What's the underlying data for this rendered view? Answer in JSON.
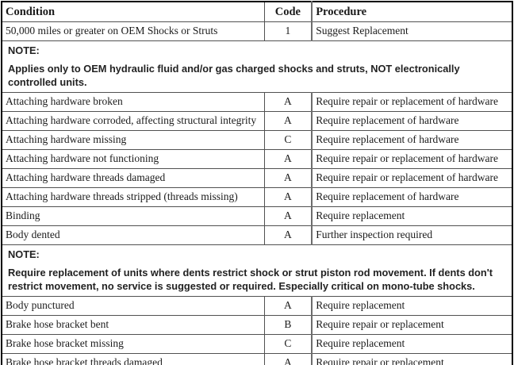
{
  "table": {
    "headers": {
      "condition": "Condition",
      "code": "Code",
      "procedure": "Procedure"
    },
    "rows": [
      {
        "type": "entry",
        "condition": "50,000 miles or greater on OEM Shocks or Struts",
        "code": "1",
        "procedure": "Suggest Replacement"
      },
      {
        "type": "note",
        "label": "NOTE:",
        "text": "Applies only to OEM hydraulic fluid and/or gas charged shocks and struts, NOT electronically controlled units."
      },
      {
        "type": "entry",
        "condition": "Attaching hardware broken",
        "code": "A",
        "procedure": "Require repair or replacement of hardware"
      },
      {
        "type": "entry",
        "condition": "Attaching hardware corroded, affecting structural integrity",
        "code": "A",
        "procedure": "Require replacement of hardware"
      },
      {
        "type": "entry",
        "condition": "Attaching hardware missing",
        "code": "C",
        "procedure": "Require replacement of hardware"
      },
      {
        "type": "entry",
        "condition": "Attaching hardware not functioning",
        "code": "A",
        "procedure": "Require repair or replacement of hardware"
      },
      {
        "type": "entry",
        "condition": "Attaching hardware threads damaged",
        "code": "A",
        "procedure": "Require repair or replacement of hardware"
      },
      {
        "type": "entry",
        "condition": "Attaching hardware threads stripped (threads missing)",
        "code": "A",
        "procedure": "Require replacement of hardware"
      },
      {
        "type": "entry",
        "condition": "Binding",
        "code": "A",
        "procedure": "Require replacement"
      },
      {
        "type": "entry",
        "condition": "Body dented",
        "code": "A",
        "procedure": "Further inspection required"
      },
      {
        "type": "note",
        "label": "NOTE:",
        "text": "Require replacement of units where dents restrict shock or strut piston rod movement. If dents don't restrict movement, no service is suggested or required. Especially critical on mono-tube shocks."
      },
      {
        "type": "entry",
        "condition": "Body punctured",
        "code": "A",
        "procedure": "Require replacement"
      },
      {
        "type": "entry",
        "condition": "Brake hose bracket bent",
        "code": "B",
        "procedure": "Require repair or replacement"
      },
      {
        "type": "entry",
        "condition": "Brake hose bracket missing",
        "code": "C",
        "procedure": "Require replacement"
      },
      {
        "type": "entry",
        "condition": "Brake hose bracket threads damaged",
        "code": "A",
        "procedure": "Require repair or replacement"
      }
    ]
  },
  "colors": {
    "outer_border": "#000000",
    "inner_border": "#515151",
    "text": "#1b1b1b",
    "background": "#ffffff"
  }
}
